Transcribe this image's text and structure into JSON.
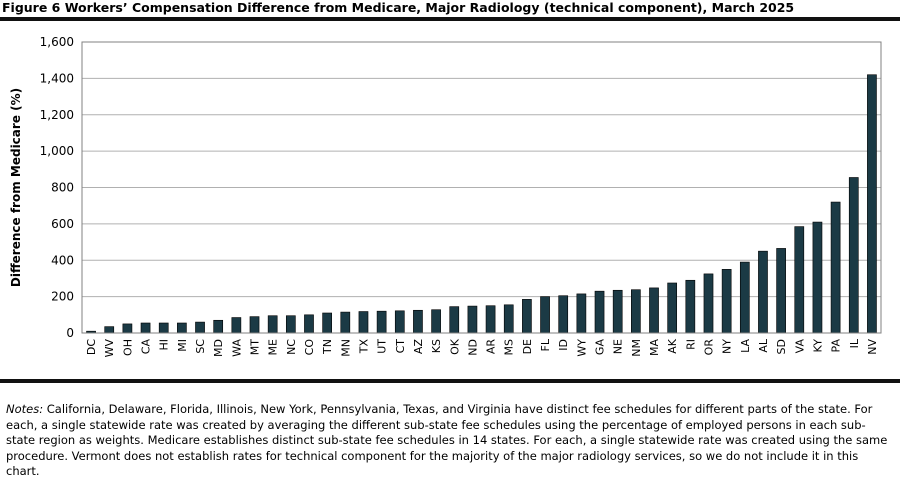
{
  "figure": {
    "title": "Figure 6  Workers’ Compensation Difference from Medicare, Major Radiology (technical component), March 2025"
  },
  "notes": {
    "label": "Notes:",
    "text": " California, Delaware, Florida, Illinois, New York, Pennsylvania, Texas, and Virginia have distinct fee schedules for different parts of the state. For each, a single statewide rate was created by averaging the different sub-state fee schedules using the percentage of employed persons in each sub-state region as weights. Medicare establishes distinct sub-state fee schedules in 14 states. For each, a single statewide rate was created using the same procedure. Vermont does not establish rates for technical component for the majority of the major radiology services, so we do not include it in this chart."
  },
  "colors": {
    "bar": "#1b3a45",
    "grid": "#b0b0b0",
    "axis": "#808080"
  },
  "chart_data": {
    "type": "bar",
    "title": "Figure 6  Workers’ Compensation Difference from Medicare, Major Radiology (technical component), March 2025",
    "xlabel": "",
    "ylabel": "Difference from Medicare (%)",
    "ylim": [
      0,
      1600
    ],
    "yticks": [
      0,
      200,
      400,
      600,
      800,
      1000,
      1200,
      1400,
      1600
    ],
    "ytick_labels": [
      "0",
      "200",
      "400",
      "600",
      "800",
      "1,000",
      "1,200",
      "1,400",
      "1,600"
    ],
    "grid": true,
    "categories": [
      "DC",
      "WV",
      "OH",
      "CA",
      "HI",
      "MI",
      "SC",
      "MD",
      "WA",
      "MT",
      "ME",
      "NC",
      "CO",
      "TN",
      "MN",
      "TX",
      "UT",
      "CT",
      "AZ",
      "KS",
      "OK",
      "ND",
      "AR",
      "MS",
      "DE",
      "FL",
      "ID",
      "WY",
      "GA",
      "NE",
      "NM",
      "MA",
      "AK",
      "RI",
      "OR",
      "NY",
      "LA",
      "AL",
      "SD",
      "VA",
      "KY",
      "PA",
      "IL",
      "NV"
    ],
    "values": [
      10,
      35,
      50,
      55,
      55,
      55,
      60,
      70,
      85,
      90,
      95,
      95,
      100,
      110,
      115,
      118,
      120,
      122,
      125,
      128,
      145,
      148,
      150,
      155,
      185,
      200,
      205,
      215,
      230,
      235,
      238,
      248,
      275,
      290,
      325,
      350,
      390,
      450,
      465,
      585,
      610,
      720,
      855,
      1420
    ]
  }
}
